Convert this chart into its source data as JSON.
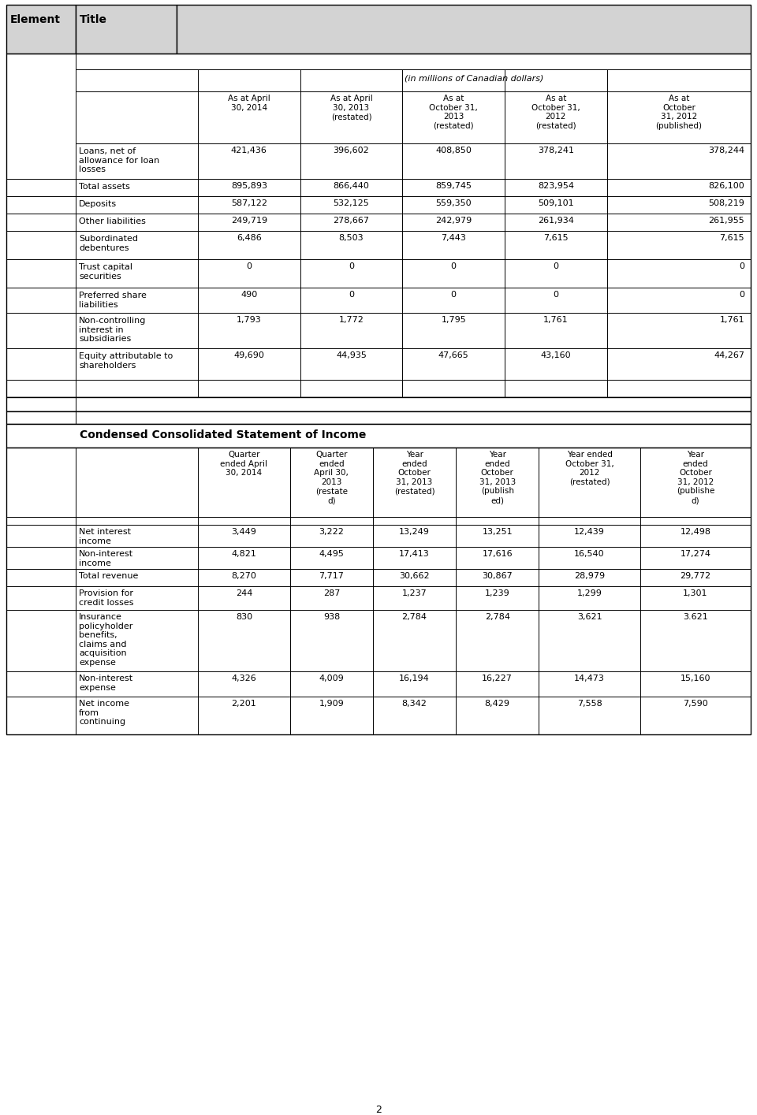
{
  "page_num": "2",
  "col_headers_bs": [
    "As at April\n30, 2014",
    "As at April\n30, 2013\n(restated)",
    "As at\nOctober 31,\n2013\n(restated)",
    "As at\nOctober 31,\n2012\n(restated)",
    "As at\nOctober\n31, 2012\n(published)"
  ],
  "balance_sheet_rows": [
    [
      "Loans, net of\nallowance for loan\nlosses",
      "421,436",
      "396,602",
      "408,850",
      "378,241",
      "378,244"
    ],
    [
      "Total assets",
      "895,893",
      "866,440",
      "859,745",
      "823,954",
      "826,100"
    ],
    [
      "Deposits",
      "587,122",
      "532,125",
      "559,350",
      "509,101",
      "508,219"
    ],
    [
      "Other liabilities",
      "249,719",
      "278,667",
      "242,979",
      "261,934",
      "261,955"
    ],
    [
      "Subordinated\ndebentures",
      "6,486",
      "8,503",
      "7,443",
      "7,615",
      "7,615"
    ],
    [
      "Trust capital\nsecurities",
      "0",
      "0",
      "0",
      "0",
      "0"
    ],
    [
      "Preferred share\nliabilities",
      "490",
      "0",
      "0",
      "0",
      "0"
    ],
    [
      "Non-controlling\ninterest in\nsubsidiaries",
      "1,793",
      "1,772",
      "1,795",
      "1,761",
      "1,761"
    ],
    [
      "Equity attributable to\nshareholders",
      "49,690",
      "44,935",
      "47,665",
      "43,160",
      "44,267"
    ]
  ],
  "col_headers_inc": [
    "Quarter\nended April\n30, 2014",
    "Quarter\nended\nApril 30,\n2013\n(restate\nd)",
    "Year\nended\nOctober\n31, 2013\n(restated)",
    "Year\nended\nOctober\n31, 2013\n(publish\ned)",
    "Year ended\nOctober 31,\n2012\n(restated)",
    "Year\nended\nOctober\n31, 2012\n(publishe\nd)"
  ],
  "income_rows": [
    [
      "Net interest\nincome",
      "3,449",
      "3,222",
      "13,249",
      "13,251",
      "12,439",
      "12,498"
    ],
    [
      "Non-interest\nincome",
      "4,821",
      "4,495",
      "17,413",
      "17,616",
      "16,540",
      "17,274"
    ],
    [
      "Total revenue",
      "8,270",
      "7,717",
      "30,662",
      "30,867",
      "28,979",
      "29,772"
    ],
    [
      "Provision for\ncredit losses",
      "244",
      "287",
      "1,237",
      "1,239",
      "1,299",
      "1,301"
    ],
    [
      "Insurance\npolicyholder\nbenefits,\nclaims and\nacquisition\nexpense",
      "830",
      "938",
      "2,784",
      "2,784",
      "3,621",
      "3.621"
    ],
    [
      "Non-interest\nexpense",
      "4,326",
      "4,009",
      "16,194",
      "16,227",
      "14,473",
      "15,160"
    ],
    [
      "Net income\nfrom\ncontinuing",
      "2,201",
      "1,909",
      "8,342",
      "8,429",
      "7,558",
      "7,590"
    ]
  ]
}
